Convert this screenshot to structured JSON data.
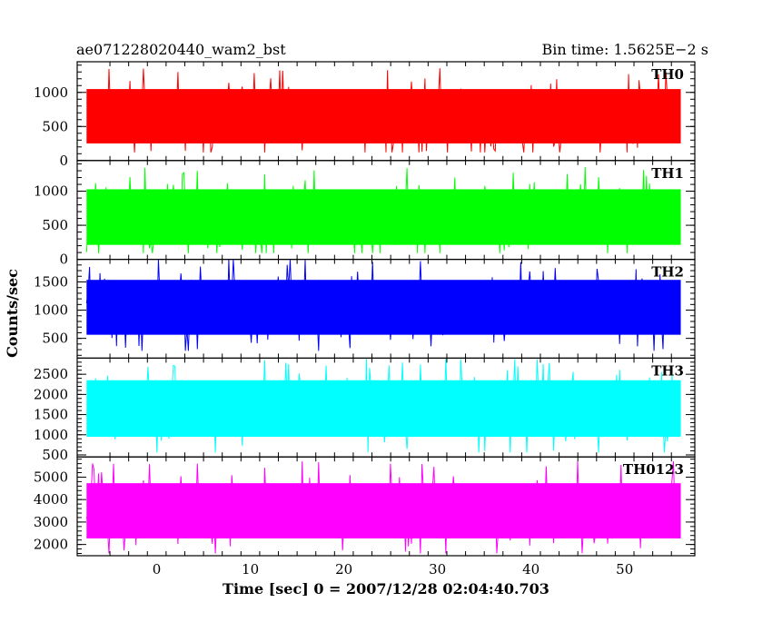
{
  "header": {
    "left_title": "ae071228020440_wam2_bst",
    "right_title": "Bin time: 1.5625E−2 s"
  },
  "chart_data": {
    "type": "line",
    "xlabel": "Time [sec] 0 = 2007/12/28 02:04:40.703",
    "ylabel": "Counts/sec",
    "xlim": [
      -8.5,
      57.5
    ],
    "xticks": [
      0,
      10,
      20,
      30,
      40,
      50
    ],
    "xtick_labels": [
      "0",
      "10",
      "20",
      "30",
      "40",
      "50"
    ],
    "data_x_range": [
      -7.5,
      56.0
    ],
    "bin_time_s": 0.015625,
    "grid": false,
    "legend": "none",
    "series": [
      {
        "name": "TH0",
        "color": "#ff0000",
        "ylim": [
          0,
          1450
        ],
        "yticks": [
          0,
          500,
          1000
        ],
        "ytick_labels": [
          "0",
          "500",
          "1000"
        ],
        "mean": 650,
        "low": 120,
        "high": 1450
      },
      {
        "name": "TH1",
        "color": "#00ff00",
        "ylim": [
          0,
          1450
        ],
        "yticks": [
          0,
          500,
          1000
        ],
        "ytick_labels": [
          "0",
          "500",
          "1000"
        ],
        "mean": 620,
        "low": 90,
        "high": 1450
      },
      {
        "name": "TH2",
        "color": "#0000ff",
        "ylim": [
          150,
          1900
        ],
        "yticks": [
          500,
          1000,
          1500
        ],
        "ytick_labels": [
          "500",
          "1000",
          "1500"
        ],
        "mean": 1050,
        "low": 280,
        "high": 1900
      },
      {
        "name": "TH3",
        "color": "#00ffff",
        "ylim": [
          450,
          2900
        ],
        "yticks": [
          500,
          1000,
          1500,
          2000,
          2500
        ],
        "ytick_labels": [
          "500",
          "1000",
          "1500",
          "2000",
          "2500"
        ],
        "mean": 1650,
        "low": 560,
        "high": 2900
      },
      {
        "name": "TH0123",
        "color": "#ff00ff",
        "ylim": [
          1500,
          5900
        ],
        "yticks": [
          2000,
          3000,
          4000,
          5000
        ],
        "ytick_labels": [
          "2000",
          "3000",
          "4000",
          "5000"
        ],
        "mean": 3500,
        "low": 1600,
        "high": 5700
      }
    ]
  }
}
